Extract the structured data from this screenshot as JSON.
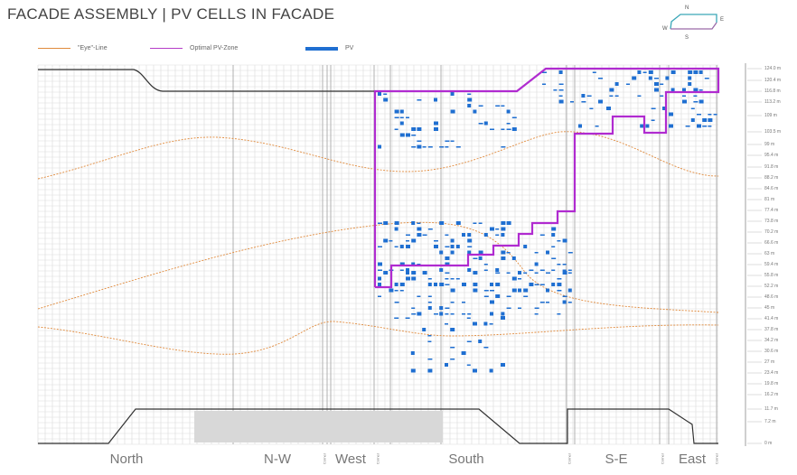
{
  "title": "FACADE ASSEMBLY | PV CELLS IN FACADE",
  "legend": [
    {
      "label": "\"Eye\"-Line",
      "color": "#e08a3c"
    },
    {
      "label": "Optimal PV-Zone",
      "color": "#b43cc8"
    },
    {
      "label": "PV",
      "color": "#1f6fd1"
    }
  ],
  "compass": {
    "n": "N",
    "e": "E",
    "s": "S",
    "w": "W"
  },
  "sections": [
    "North",
    "N-W",
    "West",
    "South",
    "S-E",
    "East"
  ],
  "corner_label": "Corner",
  "levels": [
    "124.0 m",
    "120.4 m",
    "116.8 m",
    "113.2 m",
    "109 m",
    "103.5 m",
    "99 m",
    "95.4 m",
    "91.8 m",
    "88.2 m",
    "84.6 m",
    "81 m",
    "77.4 m",
    "73.8 m",
    "70.2 m",
    "66.6 m",
    "63 m",
    "59.4 m",
    "55.8 m",
    "52.2 m",
    "48.6 m",
    "45 m",
    "41.4 m",
    "37.8 m",
    "34.2 m",
    "30.6 m",
    "27 m",
    "23.4 m",
    "19.8 m",
    "16.2 m",
    "11.7 m",
    "7.2 m",
    "0 m"
  ],
  "colors": {
    "grid": "#d4d4d4",
    "outline": "#333333",
    "zone": "#b02bd0",
    "pv": "#1f6fd1",
    "eye": "#e08a3c"
  }
}
